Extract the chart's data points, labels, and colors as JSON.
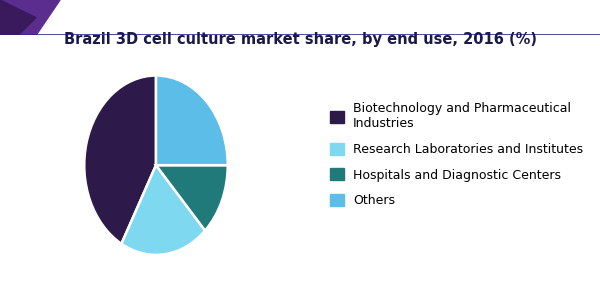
{
  "title": "Brazil 3D cell culture market share, by end use, 2016 (%)",
  "slices": [
    {
      "label": "Biotechnology and Pharmaceutical\nIndustries",
      "value": 42,
      "color": "#2d1a4a"
    },
    {
      "label": "Research Laboratories and Institutes",
      "value": 20,
      "color": "#7dd8f0"
    },
    {
      "label": "Hospitals and Diagnostic Centers",
      "value": 13,
      "color": "#217a7a"
    },
    {
      "label": "Others",
      "value": 25,
      "color": "#5bbde8"
    }
  ],
  "background_color": "#ffffff",
  "title_color": "#1a1a4a",
  "title_fontsize": 10.5,
  "legend_fontsize": 9,
  "startangle": 90,
  "header_purple": "#5b2d8e",
  "header_dark_purple": "#3a1a5c",
  "header_line_color": "#2a2a9a"
}
